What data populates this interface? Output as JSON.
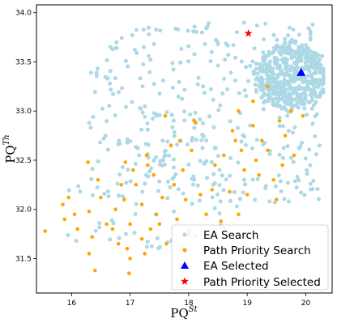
{
  "chart_data": {
    "type": "scatter",
    "xlabel_base": "PQ",
    "xlabel_sup": "St",
    "ylabel_base": "PQ",
    "ylabel_sup": "Th",
    "xlim": [
      15.4,
      20.45
    ],
    "ylim": [
      31.15,
      34.08
    ],
    "xticks": [
      16,
      17,
      18,
      19,
      20
    ],
    "yticks": [
      31.5,
      32.0,
      32.5,
      33.0,
      33.5,
      34.0
    ],
    "xtick_labels": [
      "16",
      "17",
      "18",
      "19",
      "20"
    ],
    "ytick_labels": [
      "31.5",
      "32.0",
      "32.5",
      "33.0",
      "33.5",
      "34.0"
    ],
    "grid": false,
    "legend_position": "lower-right",
    "series": [
      {
        "name": "EA Search",
        "marker": "circle",
        "color": "#add8e6"
      },
      {
        "name": "Path Priority Search",
        "marker": "circle",
        "color": "#ffa500"
      },
      {
        "name": "EA Selected",
        "marker": "triangle",
        "color": "#0000ff",
        "points": [
          [
            19.92,
            33.39
          ]
        ]
      },
      {
        "name": "Path Priority Selected",
        "marker": "star",
        "color": "#ff0000",
        "points": [
          [
            19.02,
            33.79
          ]
        ]
      }
    ],
    "path_priority_points": [
      [
        15.55,
        31.78
      ],
      [
        15.85,
        32.05
      ],
      [
        15.95,
        32.12
      ],
      [
        15.88,
        31.9
      ],
      [
        16.05,
        31.95
      ],
      [
        16.1,
        31.8
      ],
      [
        16.3,
        31.98
      ],
      [
        16.35,
        31.72
      ],
      [
        16.3,
        31.55
      ],
      [
        16.4,
        31.38
      ],
      [
        16.28,
        32.48
      ],
      [
        16.45,
        32.3
      ],
      [
        16.5,
        32.12
      ],
      [
        16.6,
        31.85
      ],
      [
        16.7,
        31.8
      ],
      [
        16.75,
        32.0
      ],
      [
        16.8,
        31.65
      ],
      [
        16.85,
        32.25
      ],
      [
        16.9,
        32.1
      ],
      [
        16.92,
        32.48
      ],
      [
        16.95,
        31.6
      ],
      [
        16.98,
        31.35
      ],
      [
        17.0,
        31.5
      ],
      [
        17.0,
        31.85
      ],
      [
        17.05,
        32.4
      ],
      [
        17.1,
        32.25
      ],
      [
        17.2,
        32.05
      ],
      [
        17.2,
        31.7
      ],
      [
        17.25,
        31.55
      ],
      [
        17.28,
        32.55
      ],
      [
        17.3,
        32.45
      ],
      [
        17.35,
        31.8
      ],
      [
        17.4,
        32.35
      ],
      [
        17.45,
        31.95
      ],
      [
        17.5,
        31.85
      ],
      [
        17.55,
        32.12
      ],
      [
        17.6,
        32.95
      ],
      [
        17.62,
        31.65
      ],
      [
        17.7,
        32.65
      ],
      [
        17.75,
        32.25
      ],
      [
        17.8,
        31.9
      ],
      [
        17.85,
        32.7
      ],
      [
        17.9,
        32.4
      ],
      [
        17.95,
        32.1
      ],
      [
        18.0,
        31.75
      ],
      [
        18.05,
        32.6
      ],
      [
        18.1,
        32.9
      ],
      [
        18.12,
        32.88
      ],
      [
        18.2,
        32.15
      ],
      [
        18.25,
        31.6
      ],
      [
        18.3,
        31.95
      ],
      [
        18.4,
        32.2
      ],
      [
        18.45,
        32.45
      ],
      [
        18.55,
        31.88
      ],
      [
        18.6,
        32.55
      ],
      [
        18.7,
        32.18
      ],
      [
        18.75,
        32.8
      ],
      [
        18.8,
        32.7
      ],
      [
        18.85,
        31.95
      ],
      [
        18.9,
        32.6
      ],
      [
        18.95,
        32.4
      ],
      [
        19.0,
        32.15
      ],
      [
        19.1,
        32.85
      ],
      [
        19.15,
        32.5
      ],
      [
        19.2,
        32.35
      ],
      [
        19.25,
        32.7
      ],
      [
        19.35,
        32.6
      ],
      [
        19.45,
        32.3
      ],
      [
        19.55,
        32.9
      ],
      [
        19.6,
        32.45
      ],
      [
        19.65,
        32.75
      ],
      [
        19.75,
        33.0
      ],
      [
        19.8,
        32.55
      ],
      [
        19.95,
        32.95
      ],
      [
        19.35,
        33.25
      ],
      [
        19.1,
        33.1
      ],
      [
        18.85,
        33.0
      ],
      [
        19.5,
        32.1
      ]
    ]
  },
  "legend": {
    "ea_search": "EA Search",
    "path_priority_search": "Path Priority Search",
    "ea_selected": "EA Selected",
    "path_priority_selected": "Path Priority Selected"
  }
}
